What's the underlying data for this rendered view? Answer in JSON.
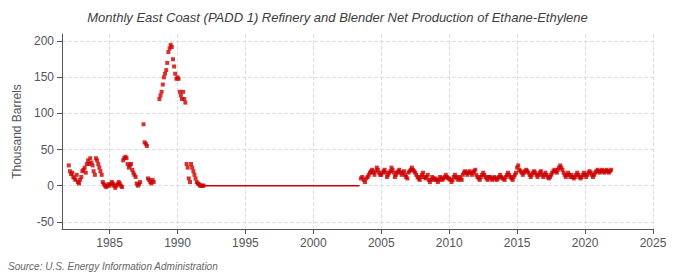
{
  "chart_data": {
    "type": "scatter",
    "title": "Monthly East Coast (PADD 1) Refinery and Blender Net Production of Ethane-Ethylene",
    "ylabel": "Thousand Barrels",
    "annotations": [
      "Source: U.S. Energy Information Administration"
    ],
    "xlim": [
      1981.5,
      2025
    ],
    "ylim": [
      -60,
      210
    ],
    "xticks": [
      1985,
      1990,
      1995,
      2000,
      2005,
      2010,
      2015,
      2020,
      2025
    ],
    "yticks": [
      -50,
      0,
      50,
      100,
      150,
      200
    ],
    "grid": true,
    "series": [
      {
        "type": "scatter",
        "marker": "square",
        "color": "#cc0000",
        "x": [
          1982.0,
          1982.08,
          1982.17,
          1982.25,
          1982.33,
          1982.42,
          1982.5,
          1982.58,
          1982.67,
          1982.75,
          1982.83,
          1982.92,
          1983.0,
          1983.08,
          1983.17,
          1983.25,
          1983.33,
          1983.42,
          1983.5,
          1983.58,
          1983.67,
          1983.75,
          1983.83,
          1983.92,
          1984.0,
          1984.08,
          1984.17,
          1984.25,
          1984.33,
          1984.42,
          1984.5,
          1984.58,
          1984.67,
          1984.75,
          1984.83,
          1984.92,
          1985.0,
          1985.08,
          1985.17,
          1985.25,
          1985.33,
          1985.42,
          1985.5,
          1985.58,
          1985.67,
          1985.75,
          1985.83,
          1985.92,
          1986.0,
          1986.08,
          1986.17,
          1986.25,
          1986.33,
          1986.42,
          1986.5,
          1986.58,
          1986.67,
          1986.75,
          1986.83,
          1986.92,
          1987.0,
          1987.08,
          1987.17,
          1987.25,
          1987.5,
          1987.58,
          1987.67,
          1987.75,
          1987.83,
          1987.92,
          1988.0,
          1988.08,
          1988.17,
          1988.25,
          1988.67,
          1988.75,
          1988.83,
          1988.92,
          1989.0,
          1989.08,
          1989.17,
          1989.25,
          1989.33,
          1989.42,
          1989.5,
          1989.58,
          1989.67,
          1989.75,
          1989.83,
          1989.92,
          1990.0,
          1990.08,
          1990.17,
          1990.25,
          1990.33,
          1990.42,
          1990.5,
          1990.58,
          1990.67,
          1990.75,
          1990.83,
          1990.92,
          1991.0,
          1991.08,
          1991.17,
          1991.25,
          1991.33,
          1991.42,
          1991.5,
          1991.58,
          1991.67,
          1991.75,
          1991.83,
          1991.92
        ],
        "values": [
          28,
          20,
          16,
          18,
          12,
          10,
          8,
          15,
          5,
          3,
          8,
          12,
          20,
          22,
          25,
          18,
          30,
          35,
          30,
          38,
          32,
          28,
          20,
          15,
          38,
          35,
          30,
          25,
          20,
          15,
          5,
          2,
          0,
          -2,
          0,
          2,
          0,
          2,
          5,
          3,
          0,
          -3,
          0,
          2,
          5,
          3,
          0,
          -2,
          35,
          38,
          40,
          38,
          30,
          25,
          28,
          30,
          22,
          18,
          15,
          12,
          3,
          0,
          2,
          5,
          85,
          60,
          58,
          55,
          10,
          8,
          5,
          3,
          8,
          5,
          120,
          125,
          130,
          140,
          150,
          155,
          160,
          170,
          185,
          190,
          195,
          192,
          175,
          165,
          155,
          148,
          150,
          148,
          130,
          125,
          120,
          130,
          120,
          115,
          30,
          25,
          10,
          5,
          30,
          25,
          20,
          15,
          10,
          5,
          3,
          2,
          0,
          0,
          0,
          0
        ]
      },
      {
        "type": "line",
        "line_style": "solid",
        "color": "#cc0000",
        "x": [
          1991.5,
          2003.4
        ],
        "values": [
          0,
          0
        ]
      },
      {
        "type": "scatter",
        "marker": "square",
        "color": "#cc0000",
        "x": [
          2003.5,
          2003.6,
          2003.7,
          2003.8,
          2003.9,
          2004.0,
          2004.08,
          2004.17,
          2004.25,
          2004.33,
          2004.42,
          2004.5,
          2004.58,
          2004.67,
          2004.75,
          2004.83,
          2004.92,
          2005.0,
          2005.08,
          2005.17,
          2005.25,
          2005.33,
          2005.42,
          2005.5,
          2005.58,
          2005.67,
          2005.75,
          2005.83,
          2005.92,
          2006.0,
          2006.08,
          2006.17,
          2006.25,
          2006.33,
          2006.42,
          2006.5,
          2006.58,
          2006.67,
          2006.75,
          2006.83,
          2006.92,
          2007.0,
          2007.08,
          2007.17,
          2007.25,
          2007.33,
          2007.42,
          2007.5,
          2007.58,
          2007.67,
          2007.75,
          2007.83,
          2007.92,
          2008.0,
          2008.08,
          2008.17,
          2008.25,
          2008.33,
          2008.42,
          2008.5,
          2008.58,
          2008.67,
          2008.75,
          2008.83,
          2008.92,
          2009.0,
          2009.08,
          2009.17,
          2009.25,
          2009.33,
          2009.42,
          2009.5,
          2009.58,
          2009.67,
          2009.75,
          2009.83,
          2009.92,
          2010.0,
          2010.08,
          2010.17,
          2010.25,
          2010.33,
          2010.42,
          2010.5,
          2010.58,
          2010.67,
          2010.75,
          2010.83,
          2010.92,
          2011.0,
          2011.08,
          2011.17,
          2011.25,
          2011.33,
          2011.42,
          2011.5,
          2011.58,
          2011.67,
          2011.75,
          2011.83,
          2011.92,
          2012.0,
          2012.08,
          2012.17,
          2012.25,
          2012.33,
          2012.42,
          2012.5,
          2012.58,
          2012.67,
          2012.75,
          2012.83,
          2012.92,
          2013.0,
          2013.08,
          2013.17,
          2013.25,
          2013.33,
          2013.42,
          2013.5,
          2013.58,
          2013.67,
          2013.75,
          2013.83,
          2013.92,
          2014.0,
          2014.08,
          2014.17,
          2014.25,
          2014.33,
          2014.42,
          2014.5,
          2014.58,
          2014.67,
          2014.75,
          2014.83,
          2014.92,
          2015.0,
          2015.08,
          2015.17,
          2015.25,
          2015.33,
          2015.42,
          2015.5,
          2015.58,
          2015.67,
          2015.75,
          2015.83,
          2015.92,
          2016.0,
          2016.08,
          2016.17,
          2016.25,
          2016.33,
          2016.42,
          2016.5,
          2016.58,
          2016.67,
          2016.75,
          2016.83,
          2016.92,
          2017.0,
          2017.08,
          2017.17,
          2017.25,
          2017.33,
          2017.42,
          2017.5,
          2017.58,
          2017.67,
          2017.75,
          2017.83,
          2017.92,
          2018.0,
          2018.08,
          2018.17,
          2018.25,
          2018.33,
          2018.42,
          2018.5,
          2018.58,
          2018.67,
          2018.75,
          2018.83,
          2018.92,
          2019.0,
          2019.08,
          2019.17,
          2019.25,
          2019.33,
          2019.42,
          2019.5,
          2019.58,
          2019.67,
          2019.75,
          2019.83,
          2019.92,
          2020.0,
          2020.08,
          2020.17,
          2020.25,
          2020.33,
          2020.42,
          2020.5,
          2020.58,
          2020.67,
          2020.75,
          2020.83,
          2020.92,
          2021.0,
          2021.08,
          2021.17,
          2021.25,
          2021.33,
          2021.42,
          2021.5,
          2021.58,
          2021.67,
          2021.75,
          2021.83,
          2021.92
        ],
        "values": [
          10,
          12,
          8,
          5,
          10,
          12,
          15,
          18,
          20,
          22,
          18,
          15,
          20,
          25,
          22,
          18,
          15,
          15,
          18,
          20,
          22,
          18,
          12,
          15,
          18,
          20,
          25,
          22,
          18,
          12,
          15,
          18,
          20,
          22,
          18,
          15,
          18,
          20,
          15,
          12,
          10,
          18,
          20,
          22,
          25,
          22,
          20,
          18,
          15,
          12,
          10,
          8,
          12,
          15,
          18,
          12,
          10,
          12,
          15,
          8,
          5,
          8,
          12,
          10,
          8,
          10,
          8,
          5,
          8,
          12,
          10,
          8,
          10,
          12,
          15,
          12,
          10,
          10,
          8,
          5,
          8,
          12,
          15,
          12,
          10,
          8,
          12,
          10,
          8,
          15,
          18,
          20,
          18,
          15,
          18,
          20,
          18,
          15,
          18,
          20,
          22,
          15,
          12,
          10,
          8,
          12,
          15,
          18,
          15,
          12,
          10,
          8,
          12,
          12,
          10,
          8,
          10,
          12,
          10,
          8,
          10,
          12,
          15,
          12,
          10,
          10,
          8,
          12,
          15,
          18,
          15,
          12,
          10,
          8,
          12,
          15,
          18,
          25,
          28,
          22,
          20,
          18,
          15,
          18,
          20,
          22,
          20,
          18,
          15,
          12,
          15,
          18,
          20,
          18,
          15,
          12,
          15,
          18,
          20,
          15,
          12,
          15,
          18,
          15,
          12,
          10,
          12,
          15,
          18,
          20,
          22,
          20,
          18,
          22,
          25,
          28,
          25,
          22,
          18,
          15,
          12,
          15,
          18,
          15,
          12,
          15,
          12,
          10,
          12,
          15,
          18,
          15,
          12,
          10,
          12,
          15,
          18,
          15,
          12,
          15,
          18,
          20,
          18,
          15,
          12,
          15,
          18,
          20,
          22,
          20,
          18,
          20,
          22,
          20,
          18,
          20,
          22,
          20,
          18,
          20,
          22
        ]
      }
    ]
  }
}
